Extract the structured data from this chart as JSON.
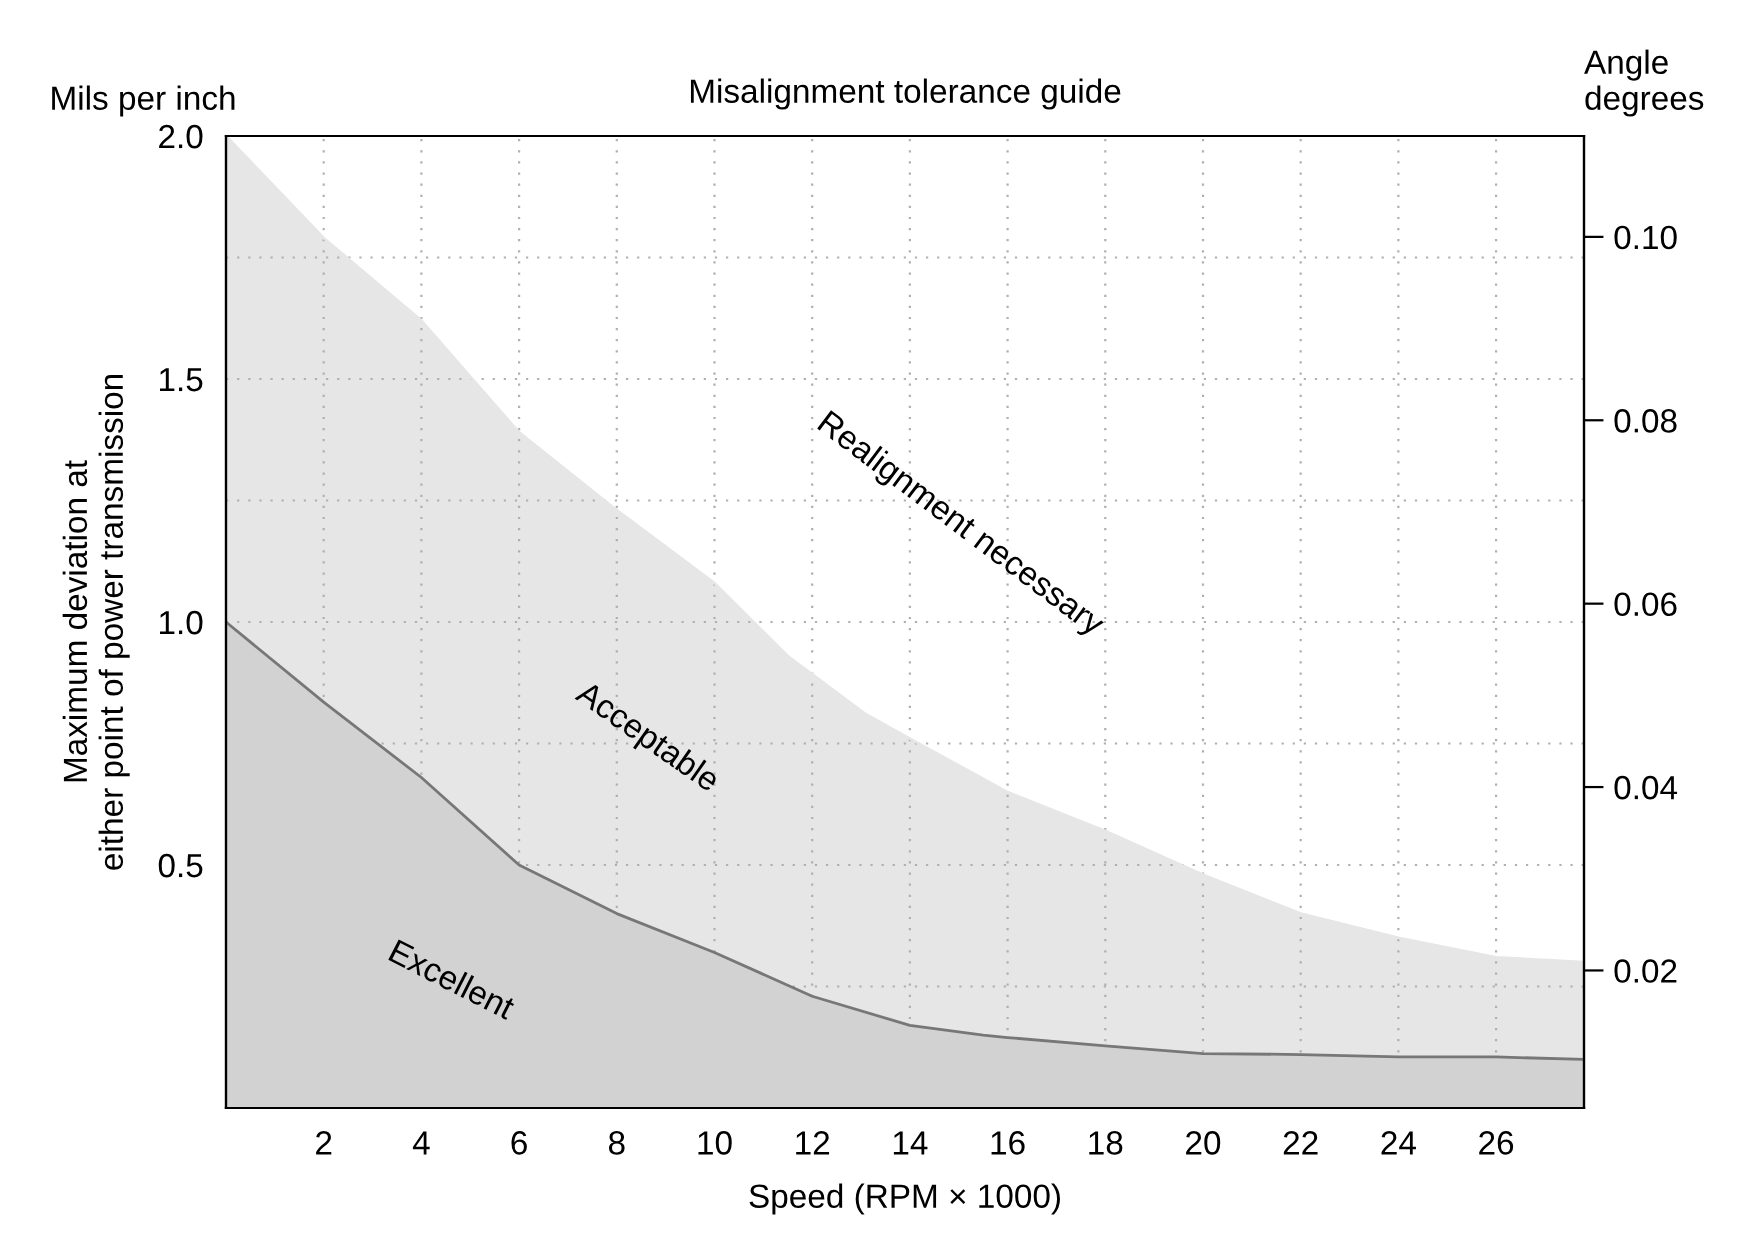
{
  "chart_data": {
    "type": "area",
    "title": "Misalignment tolerance guide",
    "xlabel": "Speed (RPM × 1000)",
    "ylabel": "Maximum deviation at\neither point of power transmission",
    "y2label": "Angle\ndegrees",
    "annotations": [
      "Mils per inch",
      "Realignment necessary",
      "Acceptable",
      "Excellent"
    ],
    "series": [
      {
        "color": "#e6e6e6",
        "x": [
          0,
          2,
          4,
          6,
          8,
          10,
          11.5,
          13.1,
          14,
          16,
          18,
          20,
          22,
          24,
          26,
          27.8
        ],
        "values": [
          2.0,
          1.79,
          1.62,
          1.39,
          1.23,
          1.08,
          0.93,
          0.81,
          0.76,
          0.65,
          0.57,
          0.48,
          0.4,
          0.35,
          0.31,
          0.3
        ]
      },
      {
        "color": "#d2d2d2",
        "x": [
          0,
          2,
          4,
          6,
          8,
          10,
          12,
          14,
          15.5,
          16,
          18,
          20,
          22,
          24,
          26,
          27.8
        ],
        "values": [
          1.0,
          0.835,
          0.68,
          0.5,
          0.4,
          0.32,
          0.23,
          0.17,
          0.15,
          0.145,
          0.128,
          0.112,
          0.11,
          0.105,
          0.105,
          0.1
        ]
      }
    ],
    "xlim": [
      0,
      27.8
    ],
    "xticks": [
      2,
      4,
      6,
      8,
      10,
      12,
      14,
      16,
      18,
      20,
      22,
      24,
      26
    ],
    "ylim": [
      0,
      2.0
    ],
    "yticks": [
      {
        "value": 0.25,
        "label": null
      },
      0.5,
      {
        "value": 0.75,
        "label": null
      },
      {
        "value": 1.0,
        "label": "1.0"
      },
      {
        "value": 1.25,
        "label": null
      },
      1.5,
      {
        "value": 1.75,
        "label": null
      },
      {
        "value": 2.0,
        "label": "2.0"
      }
    ],
    "y2lim": [
      0.005,
      0.111
    ],
    "y2ticks": [
      0.02,
      0.04,
      0.06,
      0.08,
      {
        "value": 0.1,
        "label": "0.10"
      }
    ],
    "grid": true
  }
}
